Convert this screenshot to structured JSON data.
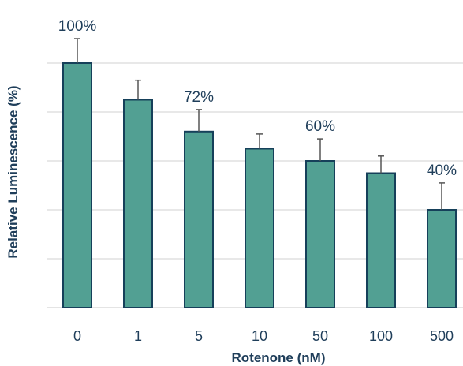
{
  "chart_data": {
    "type": "bar",
    "title": "",
    "xlabel": "Rotenone (nM)",
    "ylabel": "Relative Luminescence (%)",
    "categories": [
      "0",
      "1",
      "5",
      "10",
      "50",
      "100",
      "500"
    ],
    "values": [
      100,
      85,
      72,
      65,
      60,
      55,
      40
    ],
    "errors": [
      10,
      8,
      9,
      6,
      9,
      7,
      11
    ],
    "data_labels": [
      "100%",
      "",
      "72%",
      "",
      "60%",
      "",
      "40%"
    ],
    "ylim": [
      0,
      125
    ],
    "grid": true,
    "legend": "none",
    "colors": {
      "bar_fill": "#52a093",
      "bar_stroke": "#16405a",
      "grid": "#d0d0d0",
      "error": "#555555",
      "text": "#1f3e5a"
    }
  }
}
